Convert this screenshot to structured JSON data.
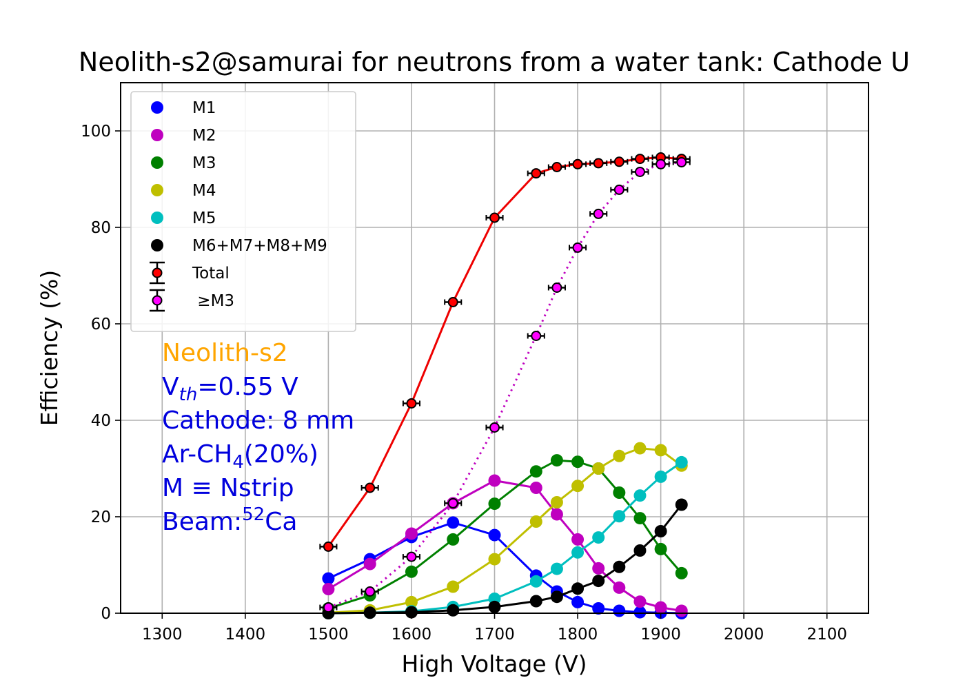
{
  "chart_data": {
    "type": "line",
    "title": "Neolith-s2@samurai for neutrons from a water tank: Cathode U",
    "xlabel": "High Voltage (V)",
    "ylabel": "Efficiency (%)",
    "xlim": [
      1250,
      2150
    ],
    "ylim": [
      0,
      110
    ],
    "xticks": [
      1300,
      1400,
      1500,
      1600,
      1700,
      1800,
      1900,
      2000,
      2100
    ],
    "yticks": [
      0,
      20,
      40,
      60,
      80,
      100
    ],
    "grid": true,
    "legend_position": "top-left",
    "x": [
      1500,
      1550,
      1600,
      1650,
      1700,
      1750,
      1775,
      1800,
      1825,
      1850,
      1875,
      1900,
      1925
    ],
    "series": [
      {
        "name": "M1",
        "color": "#0000ff",
        "style": "solid",
        "marker": "dot",
        "values": [
          7.2,
          11.2,
          15.8,
          18.8,
          16.2,
          7.8,
          4.5,
          2.3,
          1.0,
          0.5,
          0.2,
          0.1,
          0.0
        ]
      },
      {
        "name": "M2",
        "color": "#bf00bf",
        "style": "solid",
        "marker": "dot",
        "values": [
          5.0,
          10.2,
          16.5,
          22.8,
          27.5,
          26.0,
          20.5,
          15.3,
          9.3,
          5.3,
          2.4,
          1.2,
          0.5
        ]
      },
      {
        "name": "M3",
        "color": "#008000",
        "style": "solid",
        "marker": "dot",
        "values": [
          1.0,
          3.7,
          8.6,
          15.3,
          22.7,
          29.4,
          31.7,
          31.4,
          30.0,
          25.0,
          19.7,
          13.3,
          8.3
        ]
      },
      {
        "name": "M4",
        "color": "#bfbf00",
        "style": "solid",
        "marker": "dot",
        "values": [
          0.1,
          0.6,
          2.3,
          5.5,
          11.2,
          19.0,
          23.0,
          26.4,
          30.0,
          32.6,
          34.2,
          33.8,
          30.6
        ]
      },
      {
        "name": "M5",
        "color": "#00bfbf",
        "style": "solid",
        "marker": "dot",
        "values": [
          0.0,
          0.1,
          0.4,
          1.3,
          3.0,
          6.6,
          9.2,
          12.6,
          15.7,
          20.1,
          24.4,
          28.3,
          31.3
        ]
      },
      {
        "name": "M6+M7+M8+M9",
        "color": "#000000",
        "style": "solid",
        "marker": "dot",
        "values": [
          0.0,
          0.1,
          0.2,
          0.6,
          1.3,
          2.5,
          3.4,
          5.1,
          6.7,
          9.6,
          13.0,
          17.0,
          22.5
        ]
      },
      {
        "name": "Total",
        "color": "#ee0000",
        "style": "solid",
        "marker": "errorbar",
        "face": "#ff0000",
        "values": [
          13.8,
          26.0,
          43.5,
          64.5,
          82.0,
          91.2,
          92.5,
          93.1,
          93.3,
          93.6,
          94.2,
          94.5,
          94.2
        ],
        "xerr": 10
      },
      {
        "name": " ≥M3",
        "color": "#bf00bf",
        "style": "dotted",
        "marker": "errorbar",
        "face": "#ff00ff",
        "values": [
          1.2,
          4.5,
          11.7,
          22.8,
          38.5,
          57.5,
          67.5,
          75.8,
          82.8,
          87.8,
          91.5,
          93.1,
          93.5
        ],
        "xerr": 10
      }
    ]
  },
  "annotation": {
    "model": "Neolith-s2",
    "vth_prefix": "V",
    "vth_sub": "th",
    "vth_suffix": "=0.55 V",
    "cathode": "Cathode: 8 mm",
    "gas_prefix": "Ar-CH",
    "gas_sub": "4",
    "gas_suffix": "(20%)",
    "mdef": "M ≡ Nstrip",
    "beam_prefix": "Beam:",
    "beam_sup": "52",
    "beam_suffix": "Ca",
    "color_model": "#ffa500",
    "color_text": "#0000dd"
  }
}
